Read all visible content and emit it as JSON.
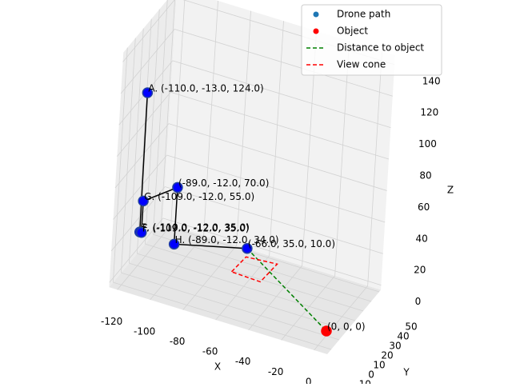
{
  "chart_data": {
    "type": "scatter3d",
    "xlabel": "X",
    "ylabel": "Y",
    "zlabel": "Z",
    "xlim": [
      -125,
      8
    ],
    "ylim": [
      -15,
      52
    ],
    "zlim": [
      -3,
      146
    ],
    "xticks": [
      -120,
      -100,
      -80,
      -60,
      -40,
      -20,
      0
    ],
    "yticks": [
      -10,
      0,
      10,
      20,
      30,
      40,
      50
    ],
    "zticks": [
      0,
      20,
      40,
      60,
      80,
      100,
      120,
      140
    ],
    "grid": true,
    "legend": "upper right",
    "path_color": "black",
    "series": [
      {
        "name": "Drone path",
        "color": "blue",
        "marker": "point",
        "x": [
          -110,
          -110,
          -109,
          -109,
          -89,
          -89,
          -66
        ],
        "y": [
          -13,
          -12,
          -12,
          -12,
          -12,
          -12,
          35
        ],
        "z": [
          124,
          35,
          35,
          55,
          70,
          34,
          10
        ],
        "labels": [
          "A. (-110.0, -13.0, 124.0)",
          "E. (-110.0, -12.0, 35.0)",
          "F. (-109.0, -12.0, 35.0)",
          "G. (-109.0, -12.0, 55.0)",
          "(-89.0, -12.0, 70.0)",
          "H. (-89.0, -12.0, 34.0)",
          "(-66.0, 35.0, 10.0)"
        ]
      },
      {
        "name": "Object",
        "color": "red",
        "marker": "point",
        "x": [
          0
        ],
        "y": [
          0
        ],
        "z": [
          0
        ],
        "labels": [
          "(0, 0, 0)"
        ]
      },
      {
        "name": "Distance to object",
        "color": "green",
        "marker": "dashed",
        "x": [
          -66,
          0
        ],
        "y": [
          35,
          0
        ],
        "z": [
          10,
          0
        ]
      },
      {
        "name": "View cone",
        "color": "red",
        "marker": "dashed",
        "x": [
          -70,
          -69,
          -51,
          -52,
          -70
        ],
        "y": [
          25,
          41,
          43,
          24,
          25
        ],
        "z": [
          0,
          0,
          0,
          0,
          0
        ]
      }
    ]
  }
}
